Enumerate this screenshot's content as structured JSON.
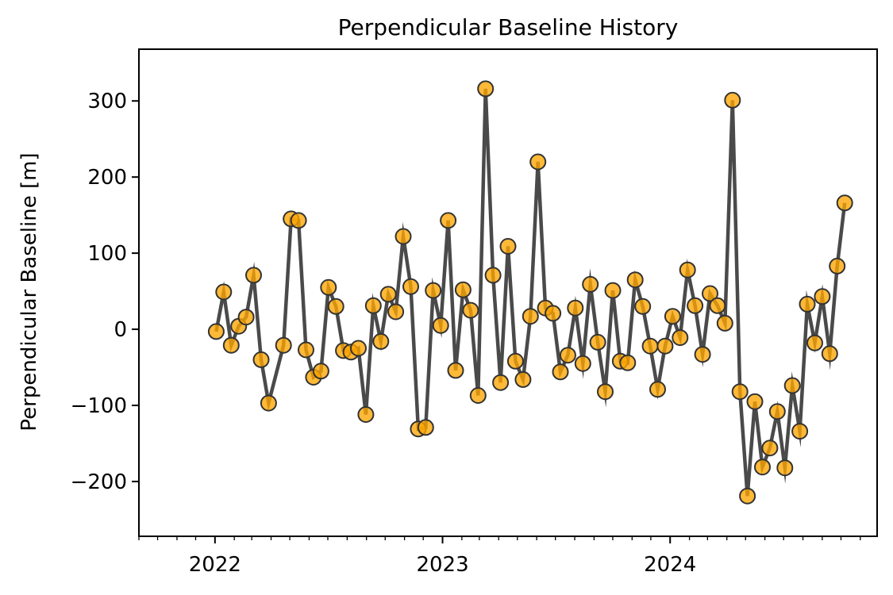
{
  "chart_data": {
    "type": "line",
    "title": "Perpendicular Baseline History",
    "xlabel": "",
    "ylabel": "Perpendicular Baseline [m]",
    "x_axis": {
      "kind": "date",
      "range": [
        "2021-09-01",
        "2024-11-28"
      ],
      "tick_labels": [
        "2022",
        "2023",
        "2024"
      ],
      "minor_ticks": "monthly"
    },
    "y_axis": {
      "range": [
        -272,
        368
      ],
      "tick_values": [
        -200,
        -100,
        0,
        100,
        200,
        300
      ],
      "tick_labels": [
        "−200",
        "−100",
        "0",
        "100",
        "200",
        "300"
      ]
    },
    "grid": false,
    "line_color": "#4a4a4a",
    "marker_color": "#ffa500",
    "marker_edge_color": "#333333",
    "series": [
      {
        "values": [
          {
            "x": "2022-01-03",
            "y": -3
          },
          {
            "x": "2022-01-15",
            "y": 49
          },
          {
            "x": "2022-01-27",
            "y": -21
          },
          {
            "x": "2022-02-08",
            "y": 4
          },
          {
            "x": "2022-02-20",
            "y": 16
          },
          {
            "x": "2022-03-04",
            "y": 71
          },
          {
            "x": "2022-03-16",
            "y": -40
          },
          {
            "x": "2022-03-28",
            "y": -97
          },
          {
            "x": "2022-04-21",
            "y": -21
          },
          {
            "x": "2022-05-03",
            "y": 145
          },
          {
            "x": "2022-05-15",
            "y": 143
          },
          {
            "x": "2022-05-27",
            "y": -27
          },
          {
            "x": "2022-06-08",
            "y": -63
          },
          {
            "x": "2022-06-20",
            "y": -55
          },
          {
            "x": "2022-07-02",
            "y": 55
          },
          {
            "x": "2022-07-14",
            "y": 30
          },
          {
            "x": "2022-07-26",
            "y": -28
          },
          {
            "x": "2022-08-07",
            "y": -30
          },
          {
            "x": "2022-08-19",
            "y": -25
          },
          {
            "x": "2022-08-31",
            "y": -112
          },
          {
            "x": "2022-09-12",
            "y": 31
          },
          {
            "x": "2022-09-24",
            "y": -16
          },
          {
            "x": "2022-10-06",
            "y": 46
          },
          {
            "x": "2022-10-18",
            "y": 23
          },
          {
            "x": "2022-10-30",
            "y": 122
          },
          {
            "x": "2022-11-11",
            "y": 56
          },
          {
            "x": "2022-11-23",
            "y": -131
          },
          {
            "x": "2022-12-05",
            "y": -129
          },
          {
            "x": "2022-12-17",
            "y": 51
          },
          {
            "x": "2022-12-29",
            "y": 5
          },
          {
            "x": "2023-01-10",
            "y": 143
          },
          {
            "x": "2023-01-22",
            "y": -54
          },
          {
            "x": "2023-02-03",
            "y": 52
          },
          {
            "x": "2023-02-15",
            "y": 25
          },
          {
            "x": "2023-02-27",
            "y": -87
          },
          {
            "x": "2023-03-11",
            "y": 316
          },
          {
            "x": "2023-03-23",
            "y": 71
          },
          {
            "x": "2023-04-04",
            "y": -70
          },
          {
            "x": "2023-04-16",
            "y": 109
          },
          {
            "x": "2023-04-28",
            "y": -42
          },
          {
            "x": "2023-05-10",
            "y": -66
          },
          {
            "x": "2023-05-22",
            "y": 17
          },
          {
            "x": "2023-06-03",
            "y": 220
          },
          {
            "x": "2023-06-15",
            "y": 28
          },
          {
            "x": "2023-06-27",
            "y": 21
          },
          {
            "x": "2023-07-09",
            "y": -56
          },
          {
            "x": "2023-07-21",
            "y": -34
          },
          {
            "x": "2023-08-02",
            "y": 28
          },
          {
            "x": "2023-08-14",
            "y": -45
          },
          {
            "x": "2023-08-26",
            "y": 59
          },
          {
            "x": "2023-09-07",
            "y": -17
          },
          {
            "x": "2023-09-19",
            "y": -82
          },
          {
            "x": "2023-10-01",
            "y": 51
          },
          {
            "x": "2023-10-13",
            "y": -42
          },
          {
            "x": "2023-10-25",
            "y": -44
          },
          {
            "x": "2023-11-06",
            "y": 65
          },
          {
            "x": "2023-11-18",
            "y": 30
          },
          {
            "x": "2023-11-30",
            "y": -22
          },
          {
            "x": "2023-12-12",
            "y": -79
          },
          {
            "x": "2023-12-24",
            "y": -22
          },
          {
            "x": "2024-01-05",
            "y": 17
          },
          {
            "x": "2024-01-17",
            "y": -11
          },
          {
            "x": "2024-01-29",
            "y": 78
          },
          {
            "x": "2024-02-10",
            "y": 31
          },
          {
            "x": "2024-02-22",
            "y": -33
          },
          {
            "x": "2024-03-05",
            "y": 47
          },
          {
            "x": "2024-03-17",
            "y": 31
          },
          {
            "x": "2024-03-29",
            "y": 8
          },
          {
            "x": "2024-04-10",
            "y": 301
          },
          {
            "x": "2024-04-22",
            "y": -82
          },
          {
            "x": "2024-05-04",
            "y": -219
          },
          {
            "x": "2024-05-16",
            "y": -95
          },
          {
            "x": "2024-05-28",
            "y": -181
          },
          {
            "x": "2024-06-09",
            "y": -156
          },
          {
            "x": "2024-06-21",
            "y": -108
          },
          {
            "x": "2024-07-03",
            "y": -182
          },
          {
            "x": "2024-07-15",
            "y": -74
          },
          {
            "x": "2024-07-27",
            "y": -134
          },
          {
            "x": "2024-08-08",
            "y": 33
          },
          {
            "x": "2024-08-20",
            "y": -18
          },
          {
            "x": "2024-09-01",
            "y": 43
          },
          {
            "x": "2024-09-13",
            "y": -32
          },
          {
            "x": "2024-09-25",
            "y": 83
          },
          {
            "x": "2024-10-07",
            "y": 166
          }
        ]
      }
    ]
  }
}
